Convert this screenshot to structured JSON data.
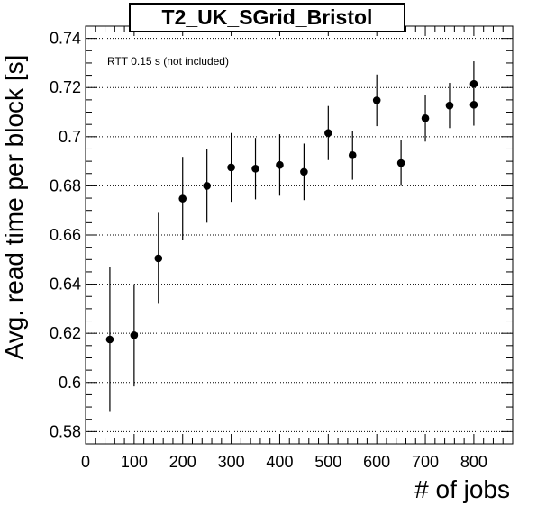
{
  "chart_data": {
    "type": "scatter",
    "title": "T2_UK_SGrid_Bristol",
    "xlabel": "# of jobs",
    "ylabel": "Avg. read time per block [s]",
    "annotation": "RTT 0.15 s (not included)",
    "xlim": [
      0,
      880
    ],
    "ylim": [
      0.575,
      0.745
    ],
    "x_ticks": [
      0,
      100,
      200,
      300,
      400,
      500,
      600,
      700,
      800
    ],
    "y_ticks": [
      0.58,
      0.6,
      0.62,
      0.64,
      0.66,
      0.68,
      0.7,
      0.72,
      0.74
    ],
    "x_tick_labels": [
      "0",
      "100",
      "200",
      "300",
      "400",
      "500",
      "600",
      "700",
      "800"
    ],
    "y_tick_labels": [
      "0.58",
      "0.6",
      "0.62",
      "0.64",
      "0.66",
      "0.68",
      "0.7",
      "0.72",
      "0.74"
    ],
    "grid": "y-dotted",
    "points": [
      {
        "x": 50,
        "y": 0.6175,
        "err": 0.0295
      },
      {
        "x": 100,
        "y": 0.6192,
        "err": 0.0208
      },
      {
        "x": 150,
        "y": 0.6505,
        "err": 0.0185
      },
      {
        "x": 200,
        "y": 0.6748,
        "err": 0.017
      },
      {
        "x": 250,
        "y": 0.68,
        "err": 0.015
      },
      {
        "x": 300,
        "y": 0.6875,
        "err": 0.014
      },
      {
        "x": 350,
        "y": 0.687,
        "err": 0.0125
      },
      {
        "x": 400,
        "y": 0.6885,
        "err": 0.0125
      },
      {
        "x": 450,
        "y": 0.6857,
        "err": 0.0115
      },
      {
        "x": 500,
        "y": 0.7015,
        "err": 0.011
      },
      {
        "x": 550,
        "y": 0.6925,
        "err": 0.01
      },
      {
        "x": 600,
        "y": 0.7148,
        "err": 0.0105
      },
      {
        "x": 650,
        "y": 0.6893,
        "err": 0.0093
      },
      {
        "x": 700,
        "y": 0.7075,
        "err": 0.0095
      },
      {
        "x": 750,
        "y": 0.7127,
        "err": 0.0092
      },
      {
        "x": 800,
        "y": 0.7215,
        "err": 0.0092
      },
      {
        "x": 800,
        "y": 0.713,
        "err": 0.0085
      }
    ]
  }
}
